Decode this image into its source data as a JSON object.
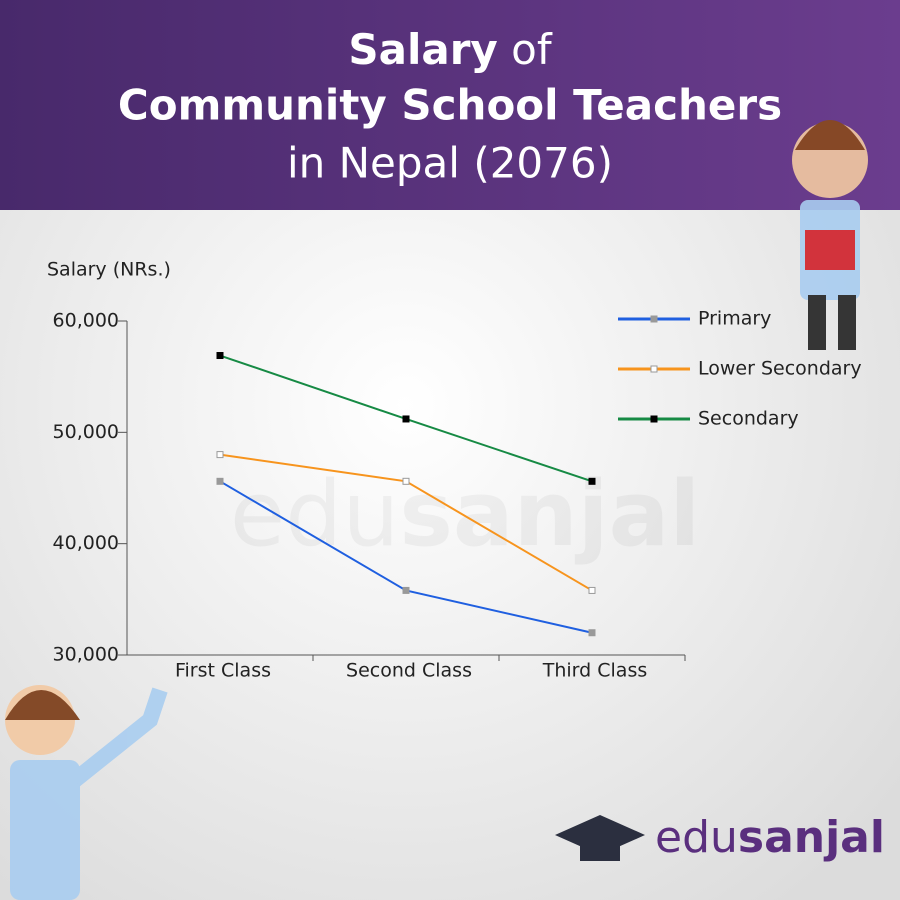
{
  "chart_data": {
    "type": "line",
    "title_lines": [
      [
        "Salary",
        "of"
      ],
      [
        "Community School Teachers"
      ],
      [
        "in Nepal (2076)"
      ]
    ],
    "y_label": "Salary (NRs.)",
    "categories": [
      "First Class",
      "Second Class",
      "Third Class"
    ],
    "series": [
      {
        "name": "Primary",
        "color": "#1f5fe0",
        "marker": "#999999",
        "values": [
          45600,
          35800,
          32000
        ]
      },
      {
        "name": "Lower Secondary",
        "color": "#f7941d",
        "marker": "#ffffff",
        "values": [
          48000,
          45600,
          35800
        ]
      },
      {
        "name": "Secondary",
        "color": "#168a44",
        "marker": "#000000",
        "values": [
          56900,
          51200,
          45600
        ]
      }
    ],
    "ylim": [
      30000,
      60000
    ],
    "yticks": [
      {
        "value": 30000,
        "label": "30,000"
      },
      {
        "value": 40000,
        "label": "40,000"
      },
      {
        "value": 50000,
        "label": "50,000"
      },
      {
        "value": 60000,
        "label": "60,000"
      }
    ],
    "legend": "top-right",
    "brand": [
      "edu",
      "sanjal"
    ]
  }
}
